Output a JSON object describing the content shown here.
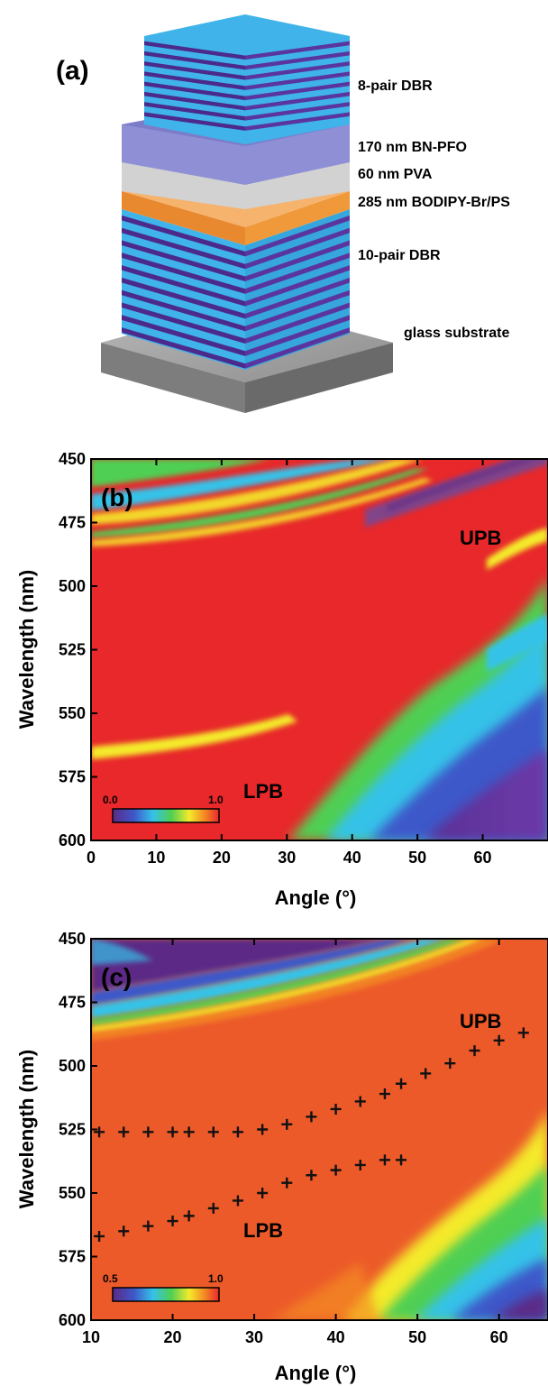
{
  "panel_a": {
    "label": "(a)",
    "layers": [
      {
        "name": "8-pair DBR",
        "pairs": 8
      },
      {
        "name": "170 nm BN-PFO"
      },
      {
        "name": "60 nm PVA"
      },
      {
        "name": "285 nm BODIPY-Br/PS"
      },
      {
        "name": "10-pair DBR",
        "pairs": 10
      },
      {
        "name": "glass substrate"
      }
    ],
    "colors": {
      "dbr_light": "#3fb3ea",
      "dbr_dark": "#4b2a8c",
      "bnpfo": "#8f8fd6",
      "pva": "#cfcfcf",
      "bodipy": "#f0993a",
      "substrate": "#9a9a9a"
    }
  },
  "chart_data": [
    {
      "type": "heatmap",
      "panel": "(b)",
      "xlabel": "Angle (°)",
      "ylabel": "Wavelength (nm)",
      "xlim": [
        0,
        70
      ],
      "ylim": [
        600,
        450
      ],
      "xticks": [
        "0",
        "10",
        "20",
        "30",
        "40",
        "50",
        "60"
      ],
      "yticks": [
        "450",
        "475",
        "500",
        "525",
        "550",
        "575",
        "600"
      ],
      "colorbar": {
        "min": "0.0",
        "max": "1.0"
      },
      "annotations": [
        "UPB",
        "LPB"
      ]
    },
    {
      "type": "heatmap",
      "panel": "(c)",
      "xlabel": "Angle (°)",
      "ylabel": "Wavelength (nm)",
      "xlim": [
        10,
        66
      ],
      "ylim": [
        600,
        450
      ],
      "xticks": [
        "10",
        "20",
        "30",
        "40",
        "50",
        "60"
      ],
      "yticks": [
        "450",
        "475",
        "500",
        "525",
        "550",
        "575",
        "600"
      ],
      "colorbar": {
        "min": "0.5",
        "max": "1.0"
      },
      "annotations": [
        "UPB",
        "LPB"
      ],
      "series": [
        {
          "values": [
            [
              11,
              526
            ],
            [
              14,
              526
            ],
            [
              17,
              526
            ],
            [
              20,
              526
            ],
            [
              22,
              526
            ],
            [
              25,
              526
            ],
            [
              28,
              526
            ],
            [
              31,
              525
            ],
            [
              34,
              523
            ],
            [
              37,
              520
            ],
            [
              40,
              517
            ],
            [
              43,
              514
            ],
            [
              46,
              511
            ],
            [
              48,
              507
            ],
            [
              51,
              503
            ],
            [
              54,
              499
            ],
            [
              57,
              494
            ],
            [
              60,
              490
            ],
            [
              63,
              487
            ]
          ]
        },
        {
          "values": [
            [
              11,
              567
            ],
            [
              14,
              565
            ],
            [
              17,
              563
            ],
            [
              20,
              561
            ],
            [
              22,
              559
            ],
            [
              25,
              556
            ],
            [
              28,
              553
            ],
            [
              31,
              550
            ],
            [
              34,
              546
            ],
            [
              37,
              543
            ],
            [
              40,
              541
            ],
            [
              43,
              539
            ],
            [
              46,
              537
            ],
            [
              48,
              537
            ]
          ]
        }
      ]
    }
  ]
}
